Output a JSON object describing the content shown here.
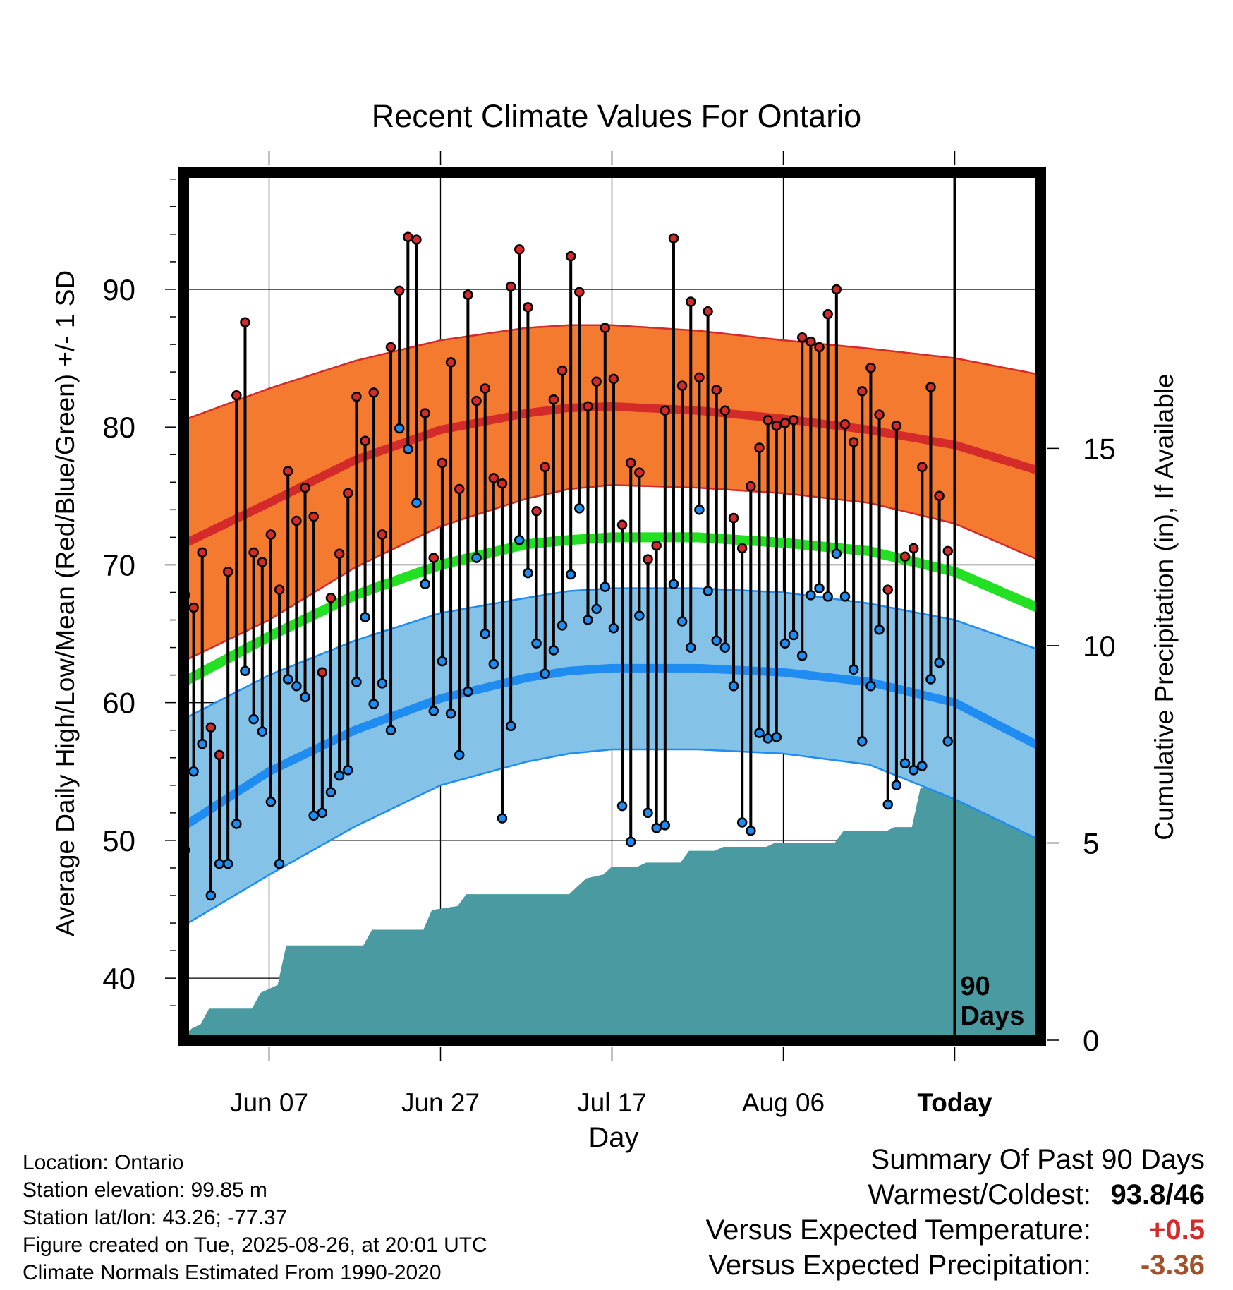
{
  "chart_data": {
    "type": "line",
    "title": "Recent Climate Values For Ontario",
    "xlabel": "Day",
    "ylabel": "Average Daily High/Low/Mean (Red/Blue/Green) +/- 1 SD",
    "y2label": "Cumulative Precipitation (in), If Available",
    "ylim": [
      35.5,
      98.5
    ],
    "y2lim": [
      0,
      22
    ],
    "y_ticks": [
      40,
      50,
      60,
      70,
      80,
      90
    ],
    "y2_ticks": [
      0,
      5,
      10,
      15
    ],
    "x_ticks": [
      {
        "day": 10,
        "label": "Jun 07"
      },
      {
        "day": 30,
        "label": "Jun 27"
      },
      {
        "day": 50,
        "label": "Jul 17"
      },
      {
        "day": 70,
        "label": "Aug 06"
      },
      {
        "day": 90,
        "label": "Today"
      }
    ],
    "today_marker": {
      "day": 90,
      "label_line1": "90",
      "label_line2": "Days"
    },
    "colors": {
      "high_band": "#f47a30",
      "high_mean": "#d42a2a",
      "low_band": "#84c2e8",
      "low_mean": "#1e8cf0",
      "mean_line": "#22e022",
      "precip": "#4a9aa2",
      "warm_text": "#d42a2a",
      "precip_text": "#a0522d"
    },
    "normals": {
      "days": [
        0,
        10,
        20,
        30,
        40,
        45,
        50,
        60,
        70,
        80,
        90,
        100
      ],
      "high_mean": [
        71.5,
        74.5,
        77.6,
        79.8,
        81.0,
        81.4,
        81.5,
        81.2,
        80.6,
        79.8,
        78.7,
        76.8
      ],
      "high_sd_upper": [
        80.5,
        82.8,
        84.8,
        86.3,
        87.2,
        87.4,
        87.4,
        87.0,
        86.3,
        85.7,
        85.0,
        83.8
      ],
      "high_sd_lower": [
        63.0,
        66.0,
        69.8,
        72.8,
        74.8,
        75.5,
        75.8,
        75.6,
        75.2,
        74.5,
        73.0,
        70.3
      ],
      "low_mean": [
        51.0,
        55.0,
        58.0,
        60.3,
        61.8,
        62.3,
        62.5,
        62.5,
        62.2,
        61.5,
        60.0,
        56.8
      ],
      "low_sd_upper": [
        58.8,
        62.0,
        64.5,
        66.5,
        67.6,
        68.1,
        68.3,
        68.3,
        68.0,
        67.2,
        66.0,
        63.8
      ],
      "low_sd_lower": [
        43.8,
        47.5,
        51.0,
        54.0,
        55.7,
        56.3,
        56.6,
        56.6,
        56.3,
        55.5,
        53.0,
        50.0
      ],
      "mean": [
        61.5,
        64.8,
        67.8,
        70.0,
        71.5,
        71.8,
        72.0,
        72.0,
        71.6,
        71.0,
        69.5,
        66.8
      ]
    },
    "series": [
      {
        "name": "High",
        "values": [
          67.8,
          66.9,
          70.9,
          58.2,
          56.2,
          69.5,
          82.3,
          87.6,
          70.9,
          70.2,
          72.2,
          68.2,
          76.8,
          73.2,
          75.6,
          73.5,
          62.2,
          67.6,
          70.8,
          75.2,
          82.2,
          79.0,
          82.5,
          72.2,
          85.8,
          89.9,
          93.8,
          93.6,
          81.0,
          70.5,
          77.4,
          84.7,
          75.5,
          89.6,
          81.9,
          82.8,
          76.3,
          75.9,
          90.2,
          92.9,
          88.7,
          73.9,
          77.1,
          82.0,
          84.1,
          92.4,
          89.8,
          81.5,
          83.3,
          87.2,
          83.5,
          72.9,
          77.4,
          76.7,
          70.4,
          71.4,
          81.2,
          93.7,
          83.0,
          89.1,
          83.6,
          88.4,
          82.7,
          81.2,
          73.4,
          71.2,
          75.7,
          78.5,
          80.5,
          80.1,
          80.3,
          80.5,
          86.5,
          86.2,
          85.8,
          88.2,
          90.0,
          80.2,
          78.9,
          82.6,
          84.3,
          80.9,
          68.2,
          80.1,
          70.6,
          71.2,
          77.1,
          82.9,
          75.0,
          71.0
        ]
      },
      {
        "name": "Low",
        "values": [
          49.3,
          55.0,
          57.0,
          46.0,
          48.3,
          48.3,
          51.2,
          62.3,
          58.8,
          57.9,
          52.8,
          48.3,
          61.7,
          61.2,
          60.4,
          51.8,
          52.0,
          53.5,
          54.7,
          55.1,
          61.5,
          66.2,
          59.9,
          61.4,
          58.0,
          79.9,
          78.4,
          74.5,
          68.6,
          59.4,
          63.0,
          59.2,
          56.2,
          60.8,
          70.5,
          65.0,
          62.8,
          51.6,
          58.3,
          71.8,
          69.4,
          64.3,
          62.1,
          63.8,
          65.6,
          69.3,
          74.1,
          66.0,
          66.8,
          68.4,
          65.4,
          52.5,
          49.9,
          66.3,
          52.0,
          50.9,
          51.1,
          68.6,
          65.9,
          64.0,
          74.0,
          68.1,
          64.5,
          64.0,
          61.2,
          51.3,
          50.7,
          57.8,
          57.4,
          57.5,
          64.3,
          64.9,
          63.4,
          67.8,
          68.3,
          67.7,
          70.8,
          67.7,
          62.4,
          57.2,
          61.2,
          65.3,
          52.6,
          54.0,
          55.6,
          55.1,
          55.4,
          61.7,
          62.9,
          57.2
        ]
      },
      {
        "name": "Cumulative Precipitation",
        "days": [
          0,
          1,
          2,
          3,
          8,
          9,
          11,
          12,
          21,
          22,
          28,
          29,
          32,
          33,
          45,
          47,
          49,
          50,
          53,
          54,
          58,
          59,
          62,
          63,
          68,
          69,
          76,
          77,
          82,
          83,
          85,
          86,
          88,
          89,
          100
        ],
        "values": [
          0.1,
          0.3,
          0.4,
          0.8,
          0.8,
          1.2,
          1.4,
          2.4,
          2.4,
          2.8,
          2.8,
          3.3,
          3.4,
          3.7,
          3.7,
          4.1,
          4.2,
          4.4,
          4.4,
          4.5,
          4.5,
          4.8,
          4.8,
          4.9,
          4.9,
          5.0,
          5.0,
          5.3,
          5.3,
          5.4,
          5.4,
          6.4,
          6.4,
          6.6,
          6.6
        ]
      }
    ]
  },
  "footer": {
    "location": "Location: Ontario",
    "elevation": "Station elevation: 99.85 m",
    "latlon": "Station lat/lon: 43.26; -77.37",
    "created": "Figure created on Tue, 2025-08-26, at 20:01 UTC",
    "normals": "Climate Normals Estimated From 1990-2020"
  },
  "summary": {
    "header": "Summary Of Past 90 Days",
    "warmest_label": "Warmest/Coldest:",
    "warmest_value": "93.8",
    "coldest_value": "46",
    "temp_label": "Versus Expected Temperature:",
    "temp_value": "+0.5",
    "precip_label": "Versus Expected Precipitation:",
    "precip_value": "-3.36"
  }
}
